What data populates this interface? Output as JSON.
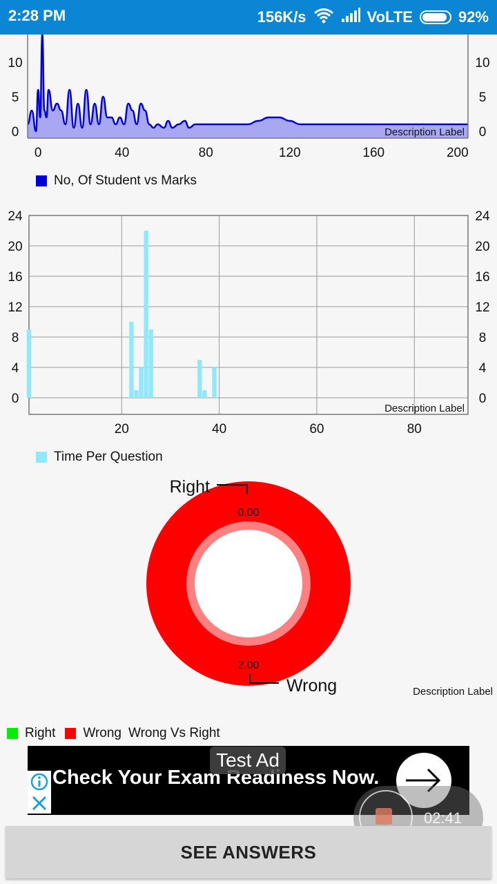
{
  "status": {
    "time": "2:28 PM",
    "speed": "156K/s",
    "network": "VoLTE",
    "battery": "92%"
  },
  "chart_data": [
    {
      "type": "area",
      "title": "",
      "description_label": "Description Label",
      "legend": "No, Of Student vs Marks",
      "series": [
        {
          "name": "No, Of Student vs Marks",
          "color": "#0000d8",
          "fill": "#a8a8f2"
        }
      ],
      "x": [
        -5,
        -3,
        -1,
        0,
        1,
        2,
        3,
        4,
        5,
        7,
        9,
        11,
        13,
        15,
        17,
        19,
        21,
        23,
        25,
        27,
        29,
        31,
        33,
        35,
        37,
        39,
        41,
        43,
        45,
        47,
        49,
        51,
        53,
        55,
        57,
        60,
        62,
        64,
        67,
        70,
        72,
        75,
        80,
        90,
        100,
        105,
        110,
        115,
        120,
        125,
        130,
        140,
        160,
        180,
        200,
        205
      ],
      "y": [
        1,
        3,
        0,
        6,
        2,
        14,
        3,
        2,
        6,
        3,
        4,
        3,
        1,
        6,
        0.5,
        4,
        0.5,
        6,
        1,
        4,
        1,
        5,
        2,
        2,
        1,
        2,
        1,
        4,
        3,
        1,
        4,
        3,
        1,
        0.5,
        1,
        0.5,
        1.5,
        0.5,
        1,
        1.5,
        0.5,
        1,
        1,
        1,
        1,
        1.5,
        2,
        2,
        1.5,
        1,
        1,
        1,
        1,
        1,
        1,
        1
      ],
      "x_ticks": [
        "0",
        "40",
        "80",
        "120",
        "160",
        "200"
      ],
      "y_ticks": [
        "0",
        "5",
        "10"
      ],
      "grid": false
    },
    {
      "type": "bar",
      "title": "",
      "description_label": "Description Label",
      "legend": "Time Per Question",
      "series": [
        {
          "name": "Time Per Question",
          "color": "#8fe8fb"
        }
      ],
      "x": [
        1,
        22,
        23,
        24,
        25,
        26,
        36,
        37,
        39
      ],
      "y": [
        9,
        10,
        1,
        4,
        22,
        9,
        5,
        1,
        4
      ],
      "x_range": [
        1,
        91
      ],
      "y_range": [
        0,
        24
      ],
      "x_ticks": [
        "20",
        "40",
        "60",
        "80"
      ],
      "y_ticks": [
        "0",
        "4",
        "8",
        "12",
        "16",
        "20",
        "24"
      ],
      "grid": true
    },
    {
      "type": "pie",
      "title": "",
      "description_label": "Description Label",
      "legend_title": "Wrong Vs Right",
      "slices": [
        {
          "label": "Right",
          "value": 0,
          "value_label": "0.00",
          "color": "#00ee00"
        },
        {
          "label": "Wrong",
          "value": 2,
          "value_label": "2.00",
          "color": "#ff0000"
        }
      ]
    }
  ],
  "ad": {
    "label": "Test Ad",
    "headline": "Check Your Exam Readiness Now."
  },
  "recorder": {
    "timer": "02:41"
  },
  "see_answers": "SEE ANSWERS"
}
